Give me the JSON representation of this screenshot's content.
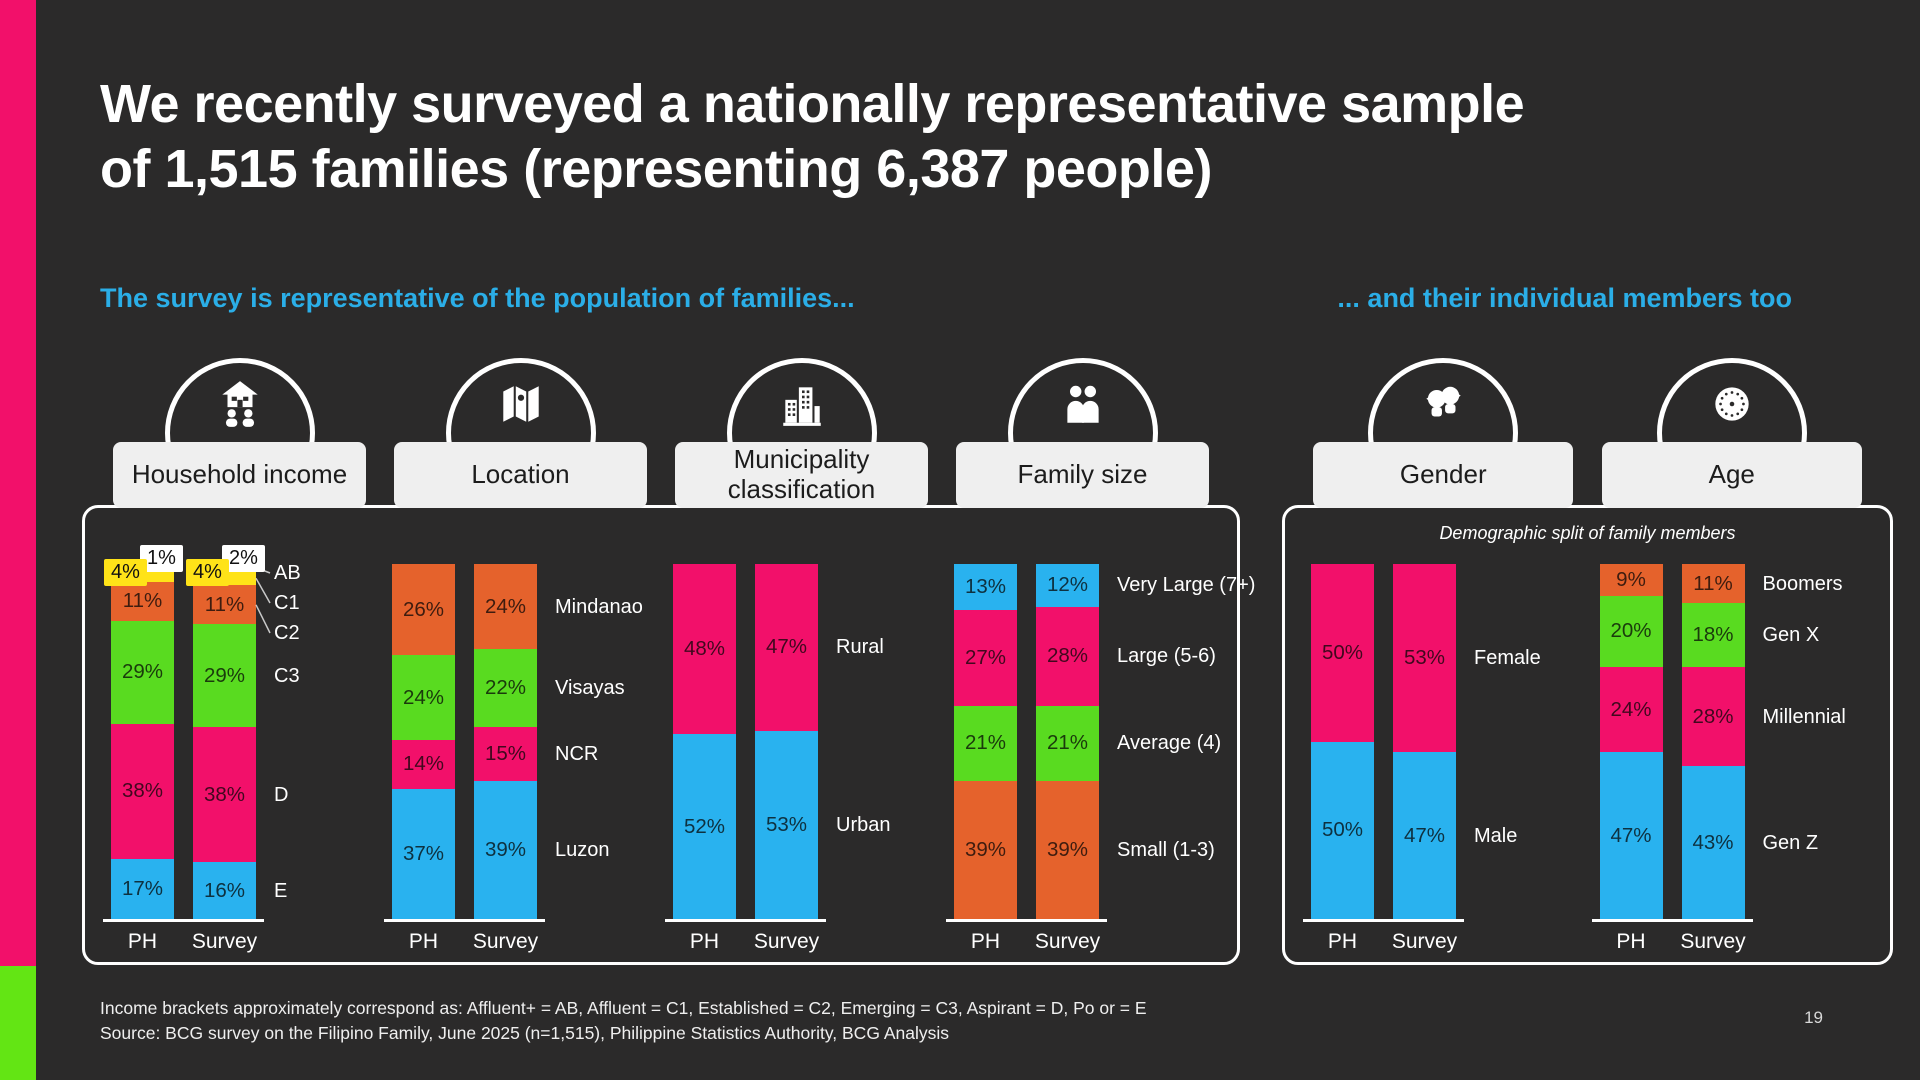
{
  "slide": {
    "title_lines": [
      "We recently surveyed a nationally representative sample",
      "of 1,515 families (representing 6,387 people)"
    ],
    "subtitle_left": "The survey is representative of the population of families...",
    "subtitle_right": "... and their individual members too",
    "right_panel_note": "Demographic split of family members",
    "footnote_line1": "Income brackets approximately correspond as: Affluent+ = AB, Affluent = C1, Established = C2, Emerging = C3, Aspirant = D, Po or = E",
    "footnote_line2": "Source:  BCG survey on the Filipino Family, June 2025 (n=1,515), Philippine Statistics Authority, BCG Analysis",
    "page_number": "19"
  },
  "colors": {
    "background": "#2B2A2A",
    "accent_pink": "#F2106A",
    "accent_green": "#63E514",
    "heading_cyan": "#2BAEE7",
    "card_bg": "#EFEFEF",
    "bar_blue": "#29B2EF",
    "bar_pink": "#F2106A",
    "bar_green": "#59DB20",
    "bar_orange": "#E5622C",
    "bar_yellow": "#FFE318",
    "bar_white": "#FFFFFF"
  },
  "chart_data": [
    {
      "type": "bar",
      "stacked": true,
      "unit": "%",
      "ylim": [
        0,
        100
      ],
      "title": "Household income",
      "icon": "house-family-icon",
      "panel": 0,
      "categories": [
        "PH",
        "Survey"
      ],
      "segment_order": "top-to-bottom",
      "series": [
        {
          "name": "AB",
          "color": "#FFFFFF",
          "values": [
            1,
            2
          ]
        },
        {
          "name": "C1",
          "color": "#FFE318",
          "values": [
            4,
            4
          ]
        },
        {
          "name": "C2",
          "color": "#E5622C",
          "values": [
            11,
            11
          ]
        },
        {
          "name": "C3",
          "color": "#59DB20",
          "values": [
            29,
            29
          ]
        },
        {
          "name": "D",
          "color": "#F2106A",
          "values": [
            38,
            38
          ]
        },
        {
          "name": "E",
          "color": "#29B2EF",
          "values": [
            17,
            16
          ]
        }
      ]
    },
    {
      "type": "bar",
      "stacked": true,
      "unit": "%",
      "ylim": [
        0,
        100
      ],
      "title": "Location",
      "icon": "map-icon",
      "panel": 0,
      "categories": [
        "PH",
        "Survey"
      ],
      "segment_order": "top-to-bottom",
      "series": [
        {
          "name": "Mindanao",
          "color": "#E5622C",
          "values": [
            26,
            24
          ]
        },
        {
          "name": "Visayas",
          "color": "#59DB20",
          "values": [
            24,
            22
          ]
        },
        {
          "name": "NCR",
          "color": "#F2106A",
          "values": [
            14,
            15
          ]
        },
        {
          "name": "Luzon",
          "color": "#29B2EF",
          "values": [
            37,
            39
          ]
        }
      ]
    },
    {
      "type": "bar",
      "stacked": true,
      "unit": "%",
      "ylim": [
        0,
        100
      ],
      "title": "Municipality classification",
      "icon": "city-buildings-icon",
      "panel": 0,
      "categories": [
        "PH",
        "Survey"
      ],
      "segment_order": "top-to-bottom",
      "series": [
        {
          "name": "Rural",
          "color": "#F2106A",
          "values": [
            48,
            47
          ]
        },
        {
          "name": "Urban",
          "color": "#29B2EF",
          "values": [
            52,
            53
          ]
        }
      ]
    },
    {
      "type": "bar",
      "stacked": true,
      "unit": "%",
      "ylim": [
        0,
        100
      ],
      "title": "Family size",
      "icon": "family-icon",
      "panel": 0,
      "categories": [
        "PH",
        "Survey"
      ],
      "segment_order": "top-to-bottom",
      "series": [
        {
          "name": "Very Large (7+)",
          "color": "#29B2EF",
          "values": [
            13,
            12
          ]
        },
        {
          "name": "Large (5-6)",
          "color": "#F2106A",
          "values": [
            27,
            28
          ]
        },
        {
          "name": "Average (4)",
          "color": "#59DB20",
          "values": [
            21,
            21
          ]
        },
        {
          "name": "Small (1-3)",
          "color": "#E5622C",
          "values": [
            39,
            39
          ]
        }
      ]
    },
    {
      "type": "bar",
      "stacked": true,
      "unit": "%",
      "ylim": [
        0,
        100
      ],
      "title": "Gender",
      "icon": "faces-icon",
      "panel": 1,
      "categories": [
        "PH",
        "Survey"
      ],
      "segment_order": "top-to-bottom",
      "series": [
        {
          "name": "Female",
          "color": "#F2106A",
          "values": [
            50,
            53
          ]
        },
        {
          "name": "Male",
          "color": "#29B2EF",
          "values": [
            50,
            47
          ]
        }
      ]
    },
    {
      "type": "bar",
      "stacked": true,
      "unit": "%",
      "ylim": [
        0,
        100
      ],
      "title": "Age",
      "icon": "clock-icon",
      "panel": 1,
      "categories": [
        "PH",
        "Survey"
      ],
      "segment_order": "top-to-bottom",
      "series": [
        {
          "name": "Boomers",
          "color": "#E5622C",
          "values": [
            9,
            11
          ]
        },
        {
          "name": "Gen X",
          "color": "#59DB20",
          "values": [
            20,
            18
          ]
        },
        {
          "name": "Millennial",
          "color": "#F2106A",
          "values": [
            24,
            28
          ]
        },
        {
          "name": "Gen Z",
          "color": "#29B2EF",
          "values": [
            47,
            43
          ]
        }
      ]
    }
  ]
}
